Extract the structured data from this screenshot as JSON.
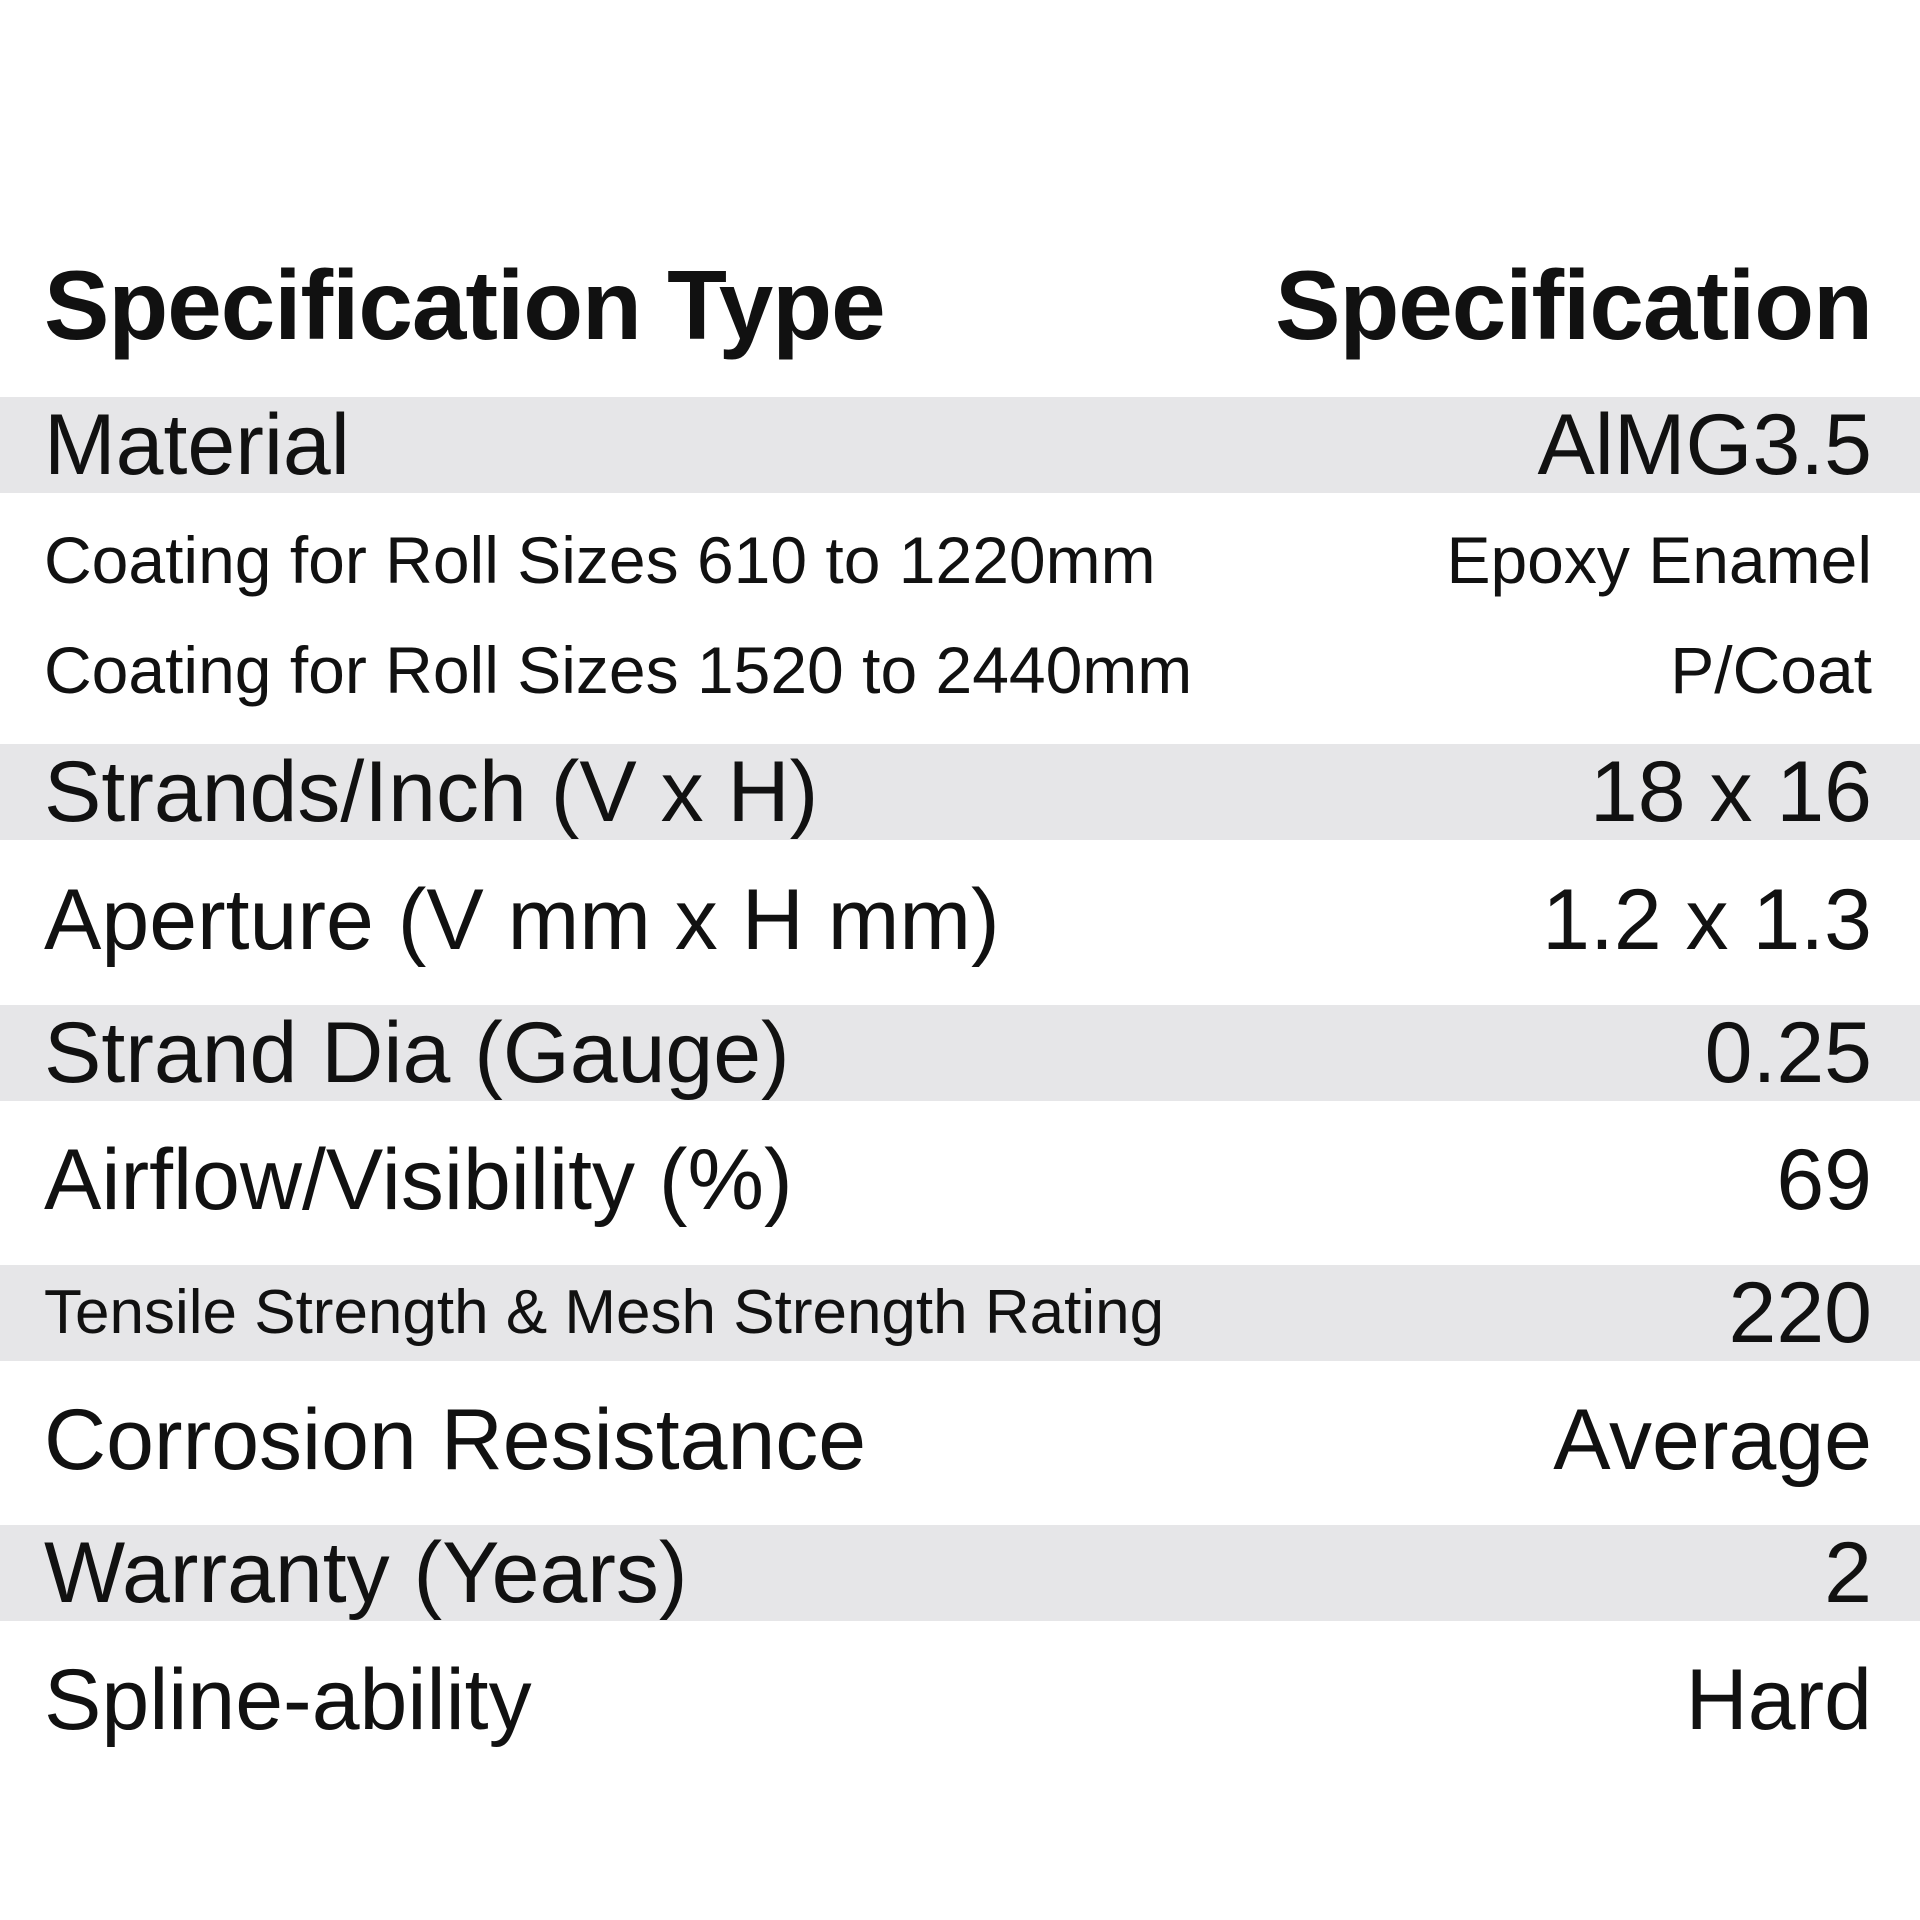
{
  "header": {
    "type_label": "Specification Type",
    "spec_label": "Specification"
  },
  "rows": [
    {
      "label": "Material",
      "value": "AlMG3.5"
    },
    {
      "label": "Coating for Roll Sizes 610 to 1220mm",
      "value": "Epoxy Enamel"
    },
    {
      "label": "Coating for Roll Sizes 1520 to 2440mm",
      "value": "P/Coat"
    },
    {
      "label": "Strands/Inch (V x H)",
      "value": "18 x 16"
    },
    {
      "label": "Aperture (V mm x H mm)",
      "value": "1.2 x 1.3"
    },
    {
      "label": "Strand Dia (Gauge)",
      "value": "0.25"
    },
    {
      "label": "Airflow/Visibility (%)",
      "value": "69"
    },
    {
      "label": "Tensile Strength & Mesh Strength Rating",
      "value": "220"
    },
    {
      "label": "Corrosion Resistance",
      "value": "Average"
    },
    {
      "label": "Warranty (Years)",
      "value": "2"
    },
    {
      "label": "Spline-ability",
      "value": "Hard"
    }
  ],
  "colors": {
    "shaded_row": "#e6e6e8",
    "text": "#111111",
    "background": "#ffffff"
  }
}
